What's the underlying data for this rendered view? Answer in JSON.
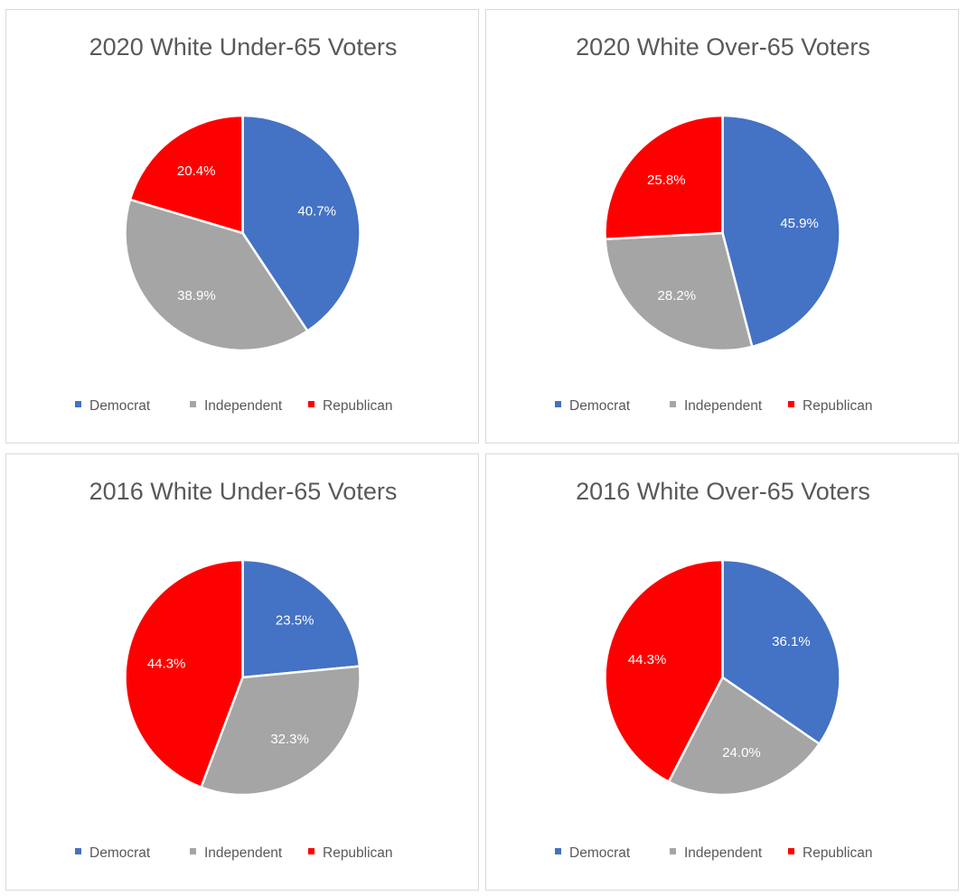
{
  "chart_data": [
    {
      "type": "pie",
      "title": "2020 White Under-65 Voters",
      "categories": [
        "Democrat",
        "Independent",
        "Republican"
      ],
      "values": [
        40.7,
        38.9,
        20.4
      ],
      "data_labels": [
        "40.7%",
        "38.9%",
        "20.4%"
      ],
      "colors": [
        "#4472C4",
        "#A5A5A5",
        "#FF0000"
      ],
      "legend": [
        "Democrat",
        "Independent",
        "Republican"
      ],
      "legend_position": "bottom"
    },
    {
      "type": "pie",
      "title": "2020 White Over-65 Voters",
      "categories": [
        "Democrat",
        "Independent",
        "Republican"
      ],
      "values": [
        45.9,
        28.2,
        25.8
      ],
      "data_labels": [
        "45.9%",
        "28.2%",
        "25.8%"
      ],
      "colors": [
        "#4472C4",
        "#A5A5A5",
        "#FF0000"
      ],
      "legend": [
        "Democrat",
        "Independent",
        "Republican"
      ],
      "legend_position": "bottom"
    },
    {
      "type": "pie",
      "title": "2016 White Under-65 Voters",
      "categories": [
        "Democrat",
        "Independent",
        "Republican"
      ],
      "values": [
        23.5,
        32.3,
        44.3
      ],
      "data_labels": [
        "23.5%",
        "32.3%",
        "44.3%"
      ],
      "colors": [
        "#4472C4",
        "#A5A5A5",
        "#FF0000"
      ],
      "legend": [
        "Democrat",
        "Independent",
        "Republican"
      ],
      "legend_position": "bottom"
    },
    {
      "type": "pie",
      "title": "2016 White Over-65 Voters",
      "categories": [
        "Democrat",
        "Independent",
        "Republican"
      ],
      "values": [
        36.1,
        24.0,
        44.3
      ],
      "data_labels": [
        "36.1%",
        "24.0%",
        "44.3%"
      ],
      "colors": [
        "#4472C4",
        "#A5A5A5",
        "#FF0000"
      ],
      "legend": [
        "Democrat",
        "Independent",
        "Republican"
      ],
      "legend_position": "bottom"
    }
  ]
}
